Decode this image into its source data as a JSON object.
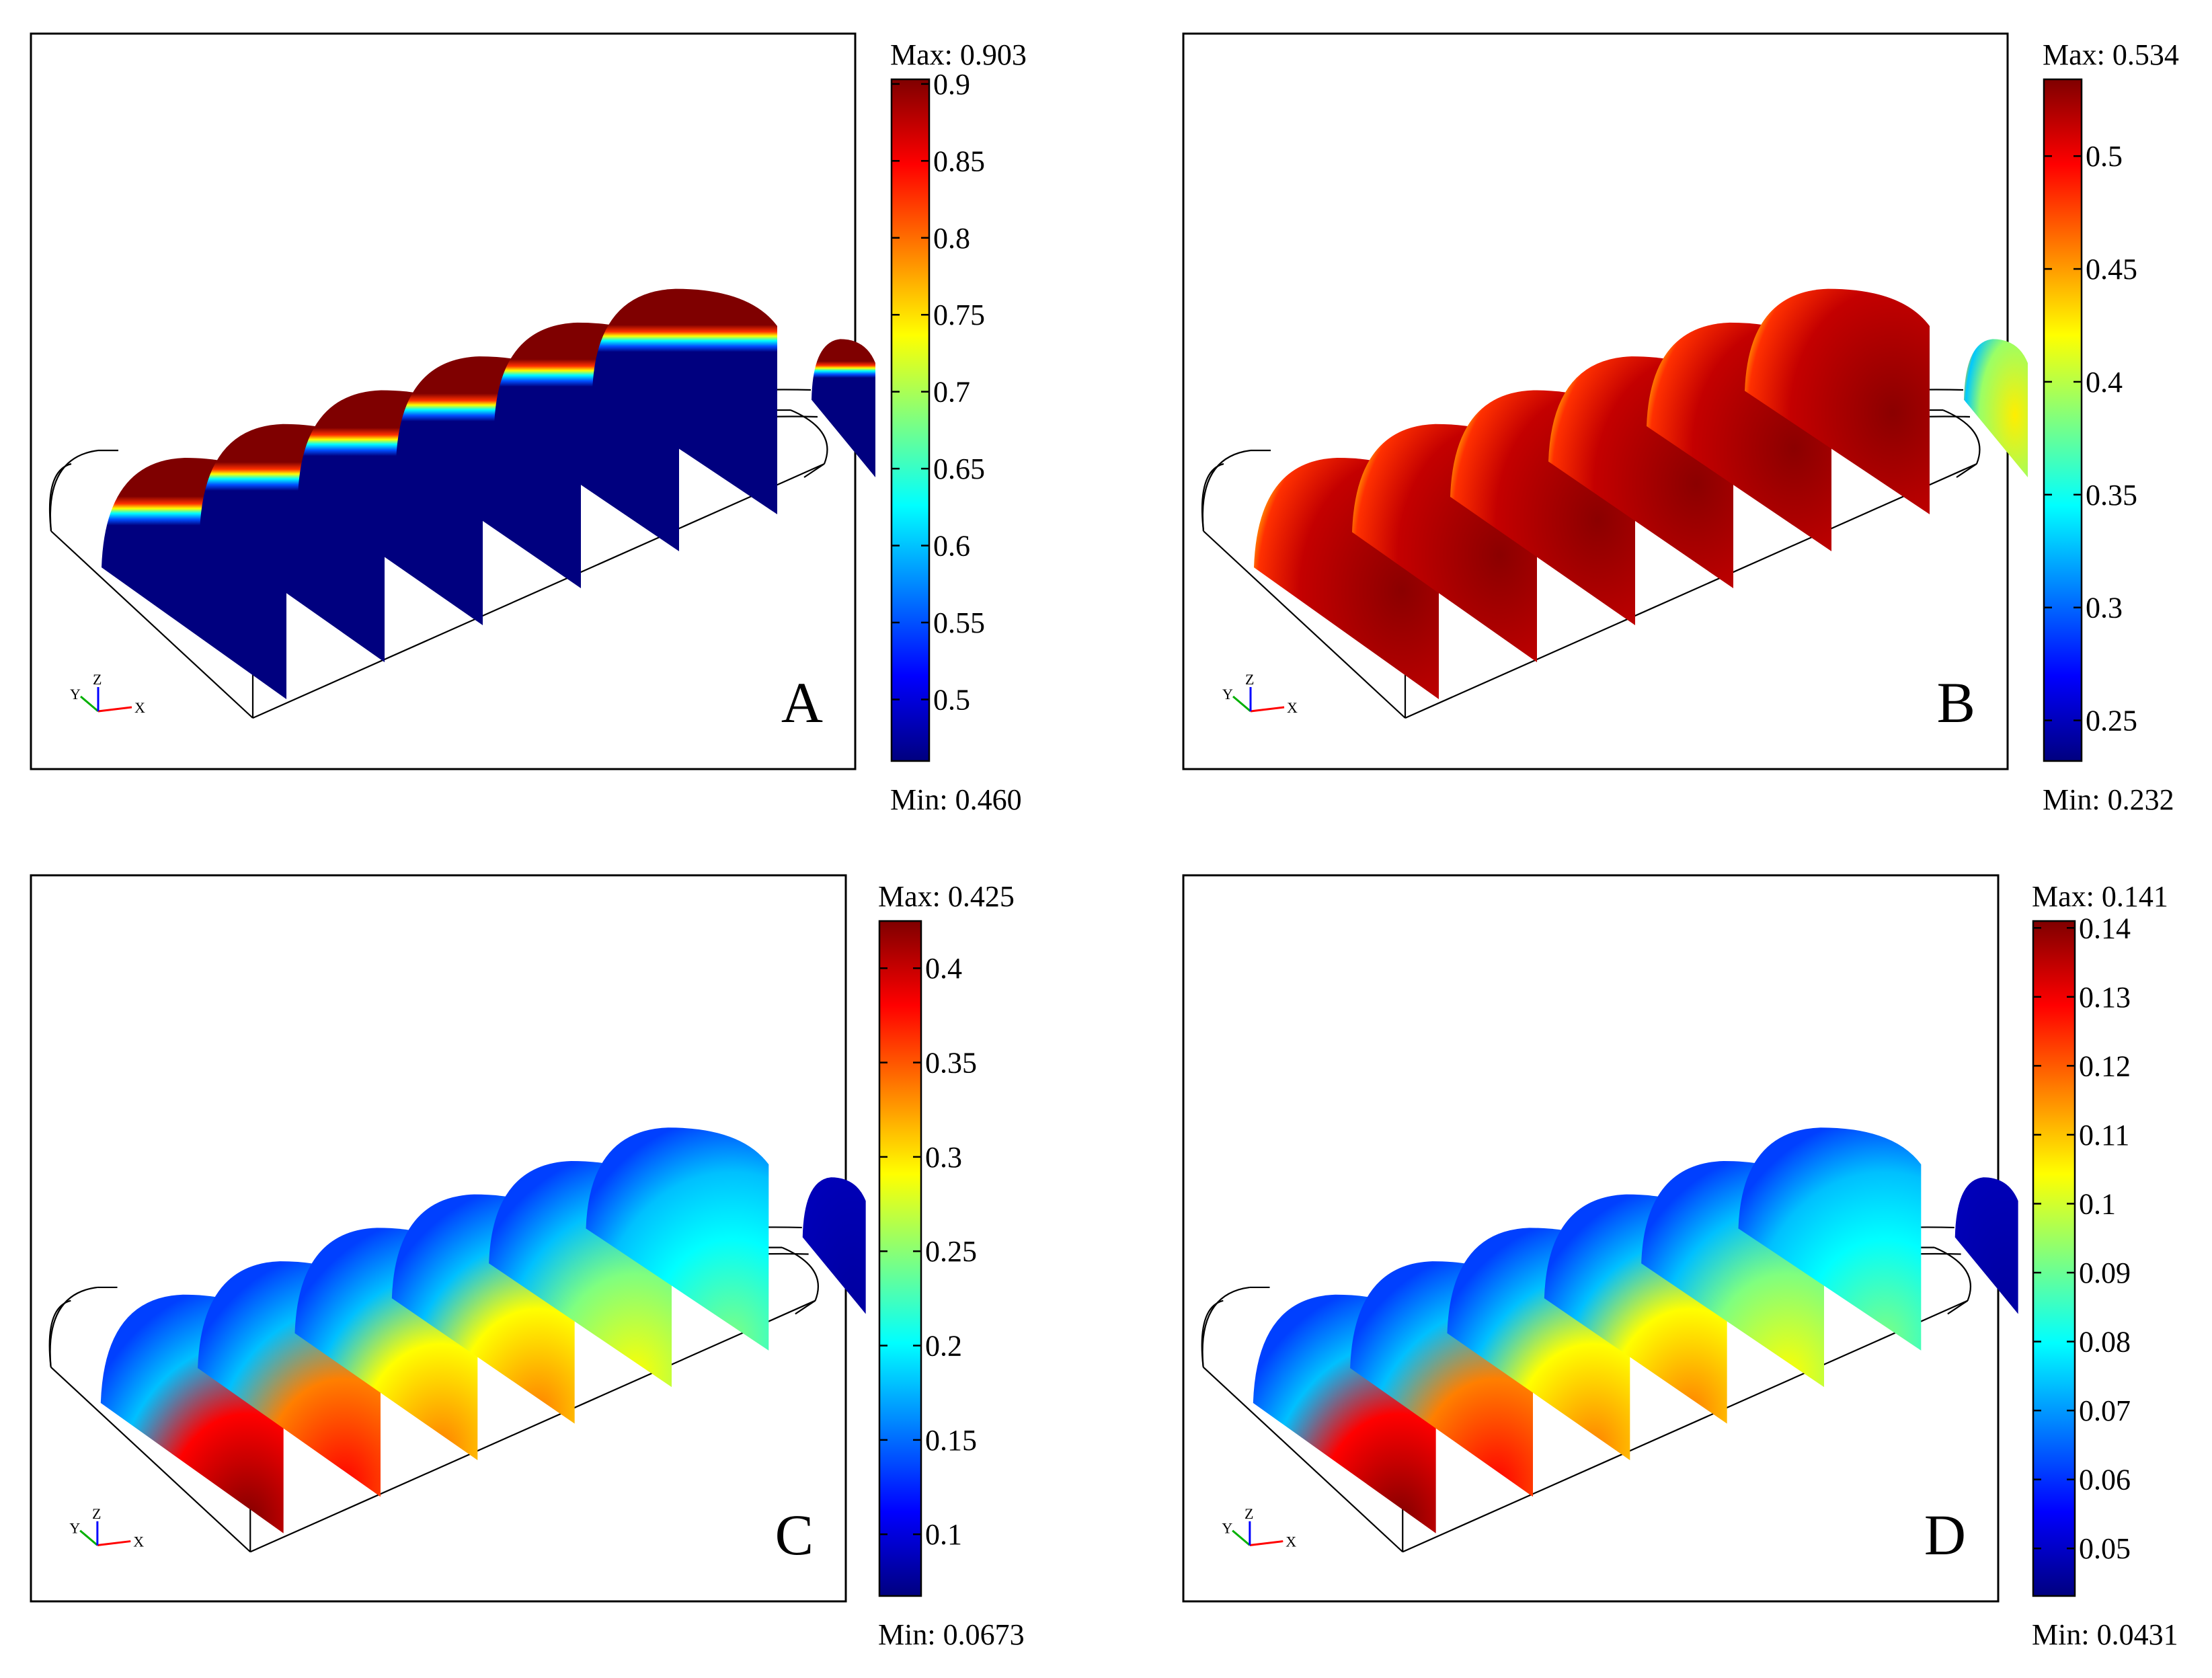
{
  "panels": [
    {
      "letter": "A",
      "max_label": "Max: 0.903",
      "min_label": "Min: 0.460",
      "range": [
        0.46,
        0.903
      ],
      "ticks": [
        "0.9",
        "0.85",
        "0.8",
        "0.75",
        "0.7",
        "0.65",
        "0.6",
        "0.55",
        "0.5"
      ],
      "tick_values": [
        0.9,
        0.85,
        0.8,
        0.75,
        0.7,
        0.65,
        0.6,
        0.55,
        0.5
      ],
      "pattern": "shell"
    },
    {
      "letter": "B",
      "max_label": "Max: 0.534",
      "min_label": "Min: 0.232",
      "range": [
        0.232,
        0.534
      ],
      "ticks": [
        "0.5",
        "0.45",
        "0.4",
        "0.35",
        "0.3",
        "0.25"
      ],
      "tick_values": [
        0.5,
        0.45,
        0.4,
        0.35,
        0.3,
        0.25
      ],
      "pattern": "hot-interior"
    },
    {
      "letter": "C",
      "max_label": "Max: 0.425",
      "min_label": "Min: 0.0673",
      "range": [
        0.0673,
        0.425
      ],
      "ticks": [
        "0.4",
        "0.35",
        "0.3",
        "0.25",
        "0.2",
        "0.15",
        "0.1"
      ],
      "tick_values": [
        0.4,
        0.35,
        0.3,
        0.25,
        0.2,
        0.15,
        0.1
      ],
      "pattern": "hot-base"
    },
    {
      "letter": "D",
      "max_label": "Max: 0.141",
      "min_label": "Min: 0.0431",
      "range": [
        0.0431,
        0.141
      ],
      "ticks": [
        "0.14",
        "0.13",
        "0.12",
        "0.11",
        "0.1",
        "0.09",
        "0.08",
        "0.07",
        "0.06",
        "0.05"
      ],
      "tick_values": [
        0.14,
        0.13,
        0.12,
        0.11,
        0.1,
        0.09,
        0.08,
        0.07,
        0.06,
        0.05
      ],
      "pattern": "hot-base"
    }
  ],
  "axis_triad": {
    "x": "X",
    "y": "Y",
    "z": "Z"
  },
  "colors": {
    "colormap": [
      "#00007f",
      "#0000ff",
      "#007fff",
      "#00ffff",
      "#7fff7f",
      "#ffff00",
      "#ff7f00",
      "#ff0000",
      "#7f0000"
    ],
    "frame": "#000000",
    "axis_x": "#ff0000",
    "axis_y": "#00b000",
    "axis_z": "#0000ff"
  }
}
